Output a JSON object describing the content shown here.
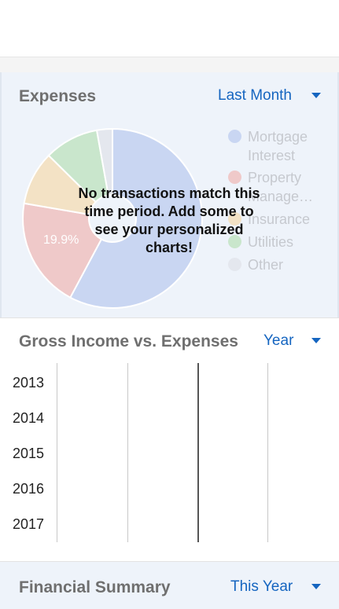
{
  "expenses": {
    "title": "Expenses",
    "period": "Last Month",
    "empty_message": "No transactions match this time period. Add some to see your personalized charts!",
    "slice_label": "19.9%",
    "legend": [
      {
        "label": "Mortgage Interest",
        "color": "#c9d6f2"
      },
      {
        "label": "Property Manage…",
        "color": "#efc9c9"
      },
      {
        "label": "Insurance",
        "color": "#f3e2c5"
      },
      {
        "label": "Utilities",
        "color": "#c9e6cc"
      },
      {
        "label": "Other",
        "color": "#e4e7ee"
      }
    ]
  },
  "chart_data": {
    "type": "pie",
    "labels": [
      "Mortgage Interest",
      "Property Manage…",
      "Insurance",
      "Utilities",
      "Other"
    ],
    "values": [
      57.8,
      19.9,
      9.7,
      9.8,
      2.8
    ],
    "colors": [
      "#c9d6f2",
      "#efc9c9",
      "#f3e2c5",
      "#c9e6cc",
      "#e4e7ee"
    ]
  },
  "income": {
    "title": "Gross Income vs. Expenses",
    "period": "Year",
    "years": [
      "2013",
      "2014",
      "2015",
      "2016",
      "2017"
    ]
  },
  "summary": {
    "title": "Financial Summary",
    "period": "This Year"
  }
}
